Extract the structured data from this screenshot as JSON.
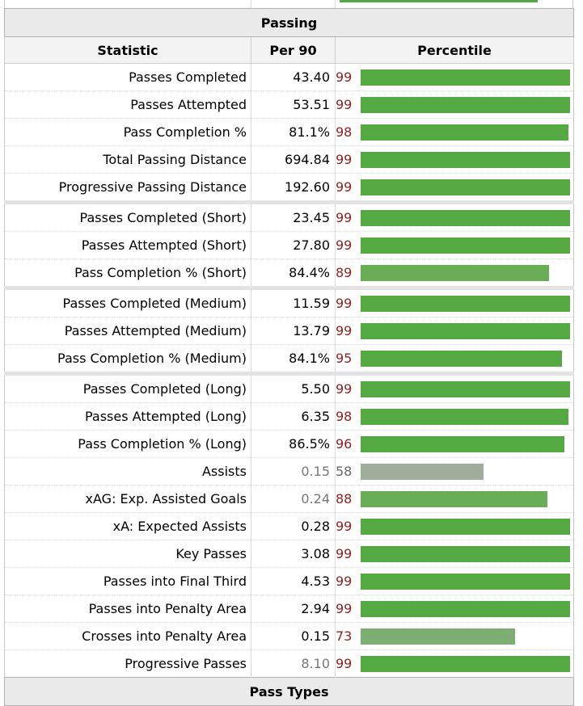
{
  "section_title": "Passing",
  "next_section_title": "Pass Types",
  "columns": {
    "statistic": "Statistic",
    "per90": "Per 90",
    "percentile": "Percentile"
  },
  "top_bar_percentile": 87,
  "rows": [
    {
      "stat": "Passes Completed",
      "per90": "43.40",
      "percentile": 99,
      "color": "#54a942",
      "group_start": false,
      "dim_value": false
    },
    {
      "stat": "Passes Attempted",
      "per90": "53.51",
      "percentile": 99,
      "color": "#54a942",
      "group_start": false,
      "dim_value": false
    },
    {
      "stat": "Pass Completion %",
      "per90": "81.1%",
      "percentile": 98,
      "color": "#54a942",
      "group_start": false,
      "dim_value": false
    },
    {
      "stat": "Total Passing Distance",
      "per90": "694.84",
      "percentile": 99,
      "color": "#54a942",
      "group_start": false,
      "dim_value": false
    },
    {
      "stat": "Progressive Passing Distance",
      "per90": "192.60",
      "percentile": 99,
      "color": "#54a942",
      "group_start": false,
      "dim_value": false
    },
    {
      "stat": "Passes Completed (Short)",
      "per90": "23.45",
      "percentile": 99,
      "color": "#54a942",
      "group_start": true,
      "dim_value": false
    },
    {
      "stat": "Passes Attempted (Short)",
      "per90": "27.80",
      "percentile": 99,
      "color": "#54a942",
      "group_start": false,
      "dim_value": false
    },
    {
      "stat": "Pass Completion % (Short)",
      "per90": "84.4%",
      "percentile": 89,
      "color": "#6aad57",
      "group_start": false,
      "dim_value": false
    },
    {
      "stat": "Passes Completed (Medium)",
      "per90": "11.59",
      "percentile": 99,
      "color": "#54a942",
      "group_start": true,
      "dim_value": false
    },
    {
      "stat": "Passes Attempted (Medium)",
      "per90": "13.79",
      "percentile": 99,
      "color": "#54a942",
      "group_start": false,
      "dim_value": false
    },
    {
      "stat": "Pass Completion % (Medium)",
      "per90": "84.1%",
      "percentile": 95,
      "color": "#54a942",
      "group_start": false,
      "dim_value": false
    },
    {
      "stat": "Passes Completed (Long)",
      "per90": "5.50",
      "percentile": 99,
      "color": "#54a942",
      "group_start": true,
      "dim_value": false
    },
    {
      "stat": "Passes Attempted (Long)",
      "per90": "6.35",
      "percentile": 98,
      "color": "#54a942",
      "group_start": false,
      "dim_value": false
    },
    {
      "stat": "Pass Completion % (Long)",
      "per90": "86.5%",
      "percentile": 96,
      "color": "#54a942",
      "group_start": false,
      "dim_value": false
    },
    {
      "stat": "Assists",
      "per90": "0.15",
      "percentile": 58,
      "color": "#9eae9a",
      "group_start": false,
      "dim_value": true
    },
    {
      "stat": "xAG: Exp. Assisted Goals",
      "per90": "0.24",
      "percentile": 88,
      "color": "#6aad57",
      "group_start": false,
      "dim_value": true
    },
    {
      "stat": "xA: Expected Assists",
      "per90": "0.28",
      "percentile": 99,
      "color": "#54a942",
      "group_start": false,
      "dim_value": false
    },
    {
      "stat": "Key Passes",
      "per90": "3.08",
      "percentile": 99,
      "color": "#54a942",
      "group_start": false,
      "dim_value": false
    },
    {
      "stat": "Passes into Final Third",
      "per90": "4.53",
      "percentile": 99,
      "color": "#54a942",
      "group_start": false,
      "dim_value": false
    },
    {
      "stat": "Passes into Penalty Area",
      "per90": "2.94",
      "percentile": 99,
      "color": "#54a942",
      "group_start": false,
      "dim_value": false
    },
    {
      "stat": "Crosses into Penalty Area",
      "per90": "0.15",
      "percentile": 73,
      "color": "#7fae74",
      "group_start": false,
      "dim_value": false
    },
    {
      "stat": "Progressive Passes",
      "per90": "8.10",
      "percentile": 99,
      "color": "#54a942",
      "group_start": false,
      "dim_value": true
    }
  ]
}
